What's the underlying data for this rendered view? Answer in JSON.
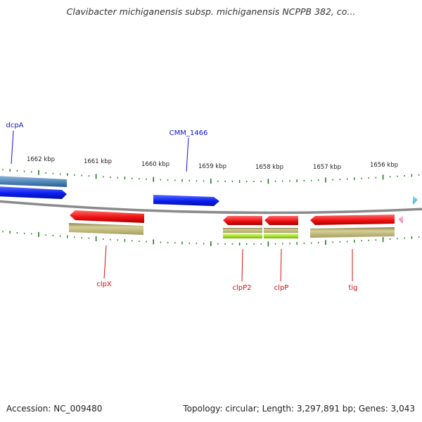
{
  "title": "Clavibacter michiganensis subsp. michiganensis NCPPB 382, co...",
  "footer": {
    "accession": "Accession: NC_009480",
    "summary": "Topology: circular; Length: 3,297,891 bp; Genes: 3,043"
  },
  "colors": {
    "backbone": "#8a8a8a",
    "ticks": "#1e7a1e",
    "forward_cds": "#0a1ef0",
    "forward_gene": "#4f86b8",
    "reverse_cds": "#ee1111",
    "reverse_gene": "#b8b06c",
    "reverse_rna": "#a8e030",
    "label_forward": "#1010cc",
    "label_reverse": "#cc1111",
    "edge_marker_right": "#40c8f0",
    "edge_marker_left": "#f0a0c0"
  },
  "scale_labels": [
    "1662 kbp",
    "1661 kbp",
    "1660 kbp",
    "1659 kbp",
    "1658 kbp",
    "1657 kbp",
    "1656 kbp"
  ],
  "labels": {
    "dcpA": "dcpA",
    "cmm1466": "CMM_1466",
    "clpX": "clpX",
    "clpP2": "clpP2",
    "clpP": "clpP",
    "tig": "tig"
  }
}
